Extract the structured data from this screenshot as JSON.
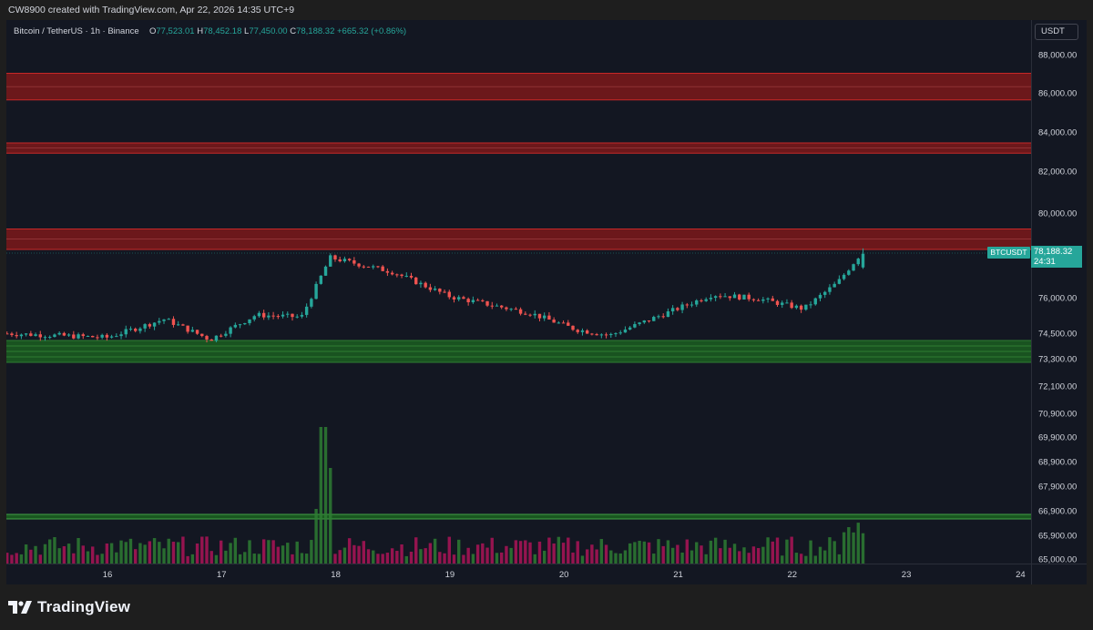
{
  "header": {
    "attribution": "CW8900 created with TradingView.com, Apr 22, 2026 14:35 UTC+9"
  },
  "legend": {
    "symbol": "Bitcoin / TetherUS · 1h · Binance",
    "open_label": "O",
    "open": "77,523.01",
    "high_label": "H",
    "high": "78,452.18",
    "low_label": "L",
    "low": "77,450.00",
    "close_label": "C",
    "close": "78,188.32",
    "change": "+665.32 (+0.86%)"
  },
  "price_axis": {
    "currency": "USDT",
    "ticks": [
      "88,000.00",
      "86,000.00",
      "84,000.00",
      "82,000.00",
      "80,000.00",
      "76,000.00",
      "74,500.00",
      "73,300.00",
      "72,100.00",
      "70,900.00",
      "69,900.00",
      "68,900.00",
      "67,900.00",
      "66,900.00",
      "65,900.00",
      "65,000.00"
    ]
  },
  "last_price": {
    "symbol": "BTCUSDT",
    "value": "78,188.32",
    "countdown": "24:31"
  },
  "time_axis": {
    "ticks": [
      "16",
      "17",
      "18",
      "19",
      "20",
      "21",
      "22",
      "23",
      "24"
    ]
  },
  "brand": {
    "name": "TradingView"
  },
  "colors": {
    "up": "#26a69a",
    "down": "#ef5350",
    "resistance": "#8b1a1a",
    "support": "#1b5e20",
    "background": "#131722"
  },
  "chart_data": {
    "type": "candlestick",
    "symbol": "BTCUSDT",
    "interval": "1h",
    "x": [
      "16",
      "17",
      "18",
      "19",
      "20",
      "21",
      "22",
      "23",
      "24"
    ],
    "resistance_zones": [
      [
        85700,
        87000
      ],
      [
        83100,
        83600
      ],
      [
        78400,
        79400
      ]
    ],
    "support_zone": [
      73300,
      74300
    ],
    "trend": [
      {
        "day": 15.1,
        "price": 74300
      },
      {
        "day": 16.0,
        "price": 74100
      },
      {
        "day": 16.5,
        "price": 75000
      },
      {
        "day": 16.9,
        "price": 74000
      },
      {
        "day": 17.3,
        "price": 75200
      },
      {
        "day": 17.7,
        "price": 75100
      },
      {
        "day": 17.95,
        "price": 78000
      },
      {
        "day": 18.5,
        "price": 77300
      },
      {
        "day": 19.0,
        "price": 76100
      },
      {
        "day": 19.7,
        "price": 75300
      },
      {
        "day": 20.1,
        "price": 74500
      },
      {
        "day": 20.4,
        "price": 74200
      },
      {
        "day": 20.9,
        "price": 75300
      },
      {
        "day": 21.3,
        "price": 76200
      },
      {
        "day": 21.7,
        "price": 76000
      },
      {
        "day": 22.1,
        "price": 75500
      },
      {
        "day": 22.4,
        "price": 76800
      },
      {
        "day": 22.6,
        "price": 78188
      }
    ],
    "volume_spike_day": 17.9
  }
}
